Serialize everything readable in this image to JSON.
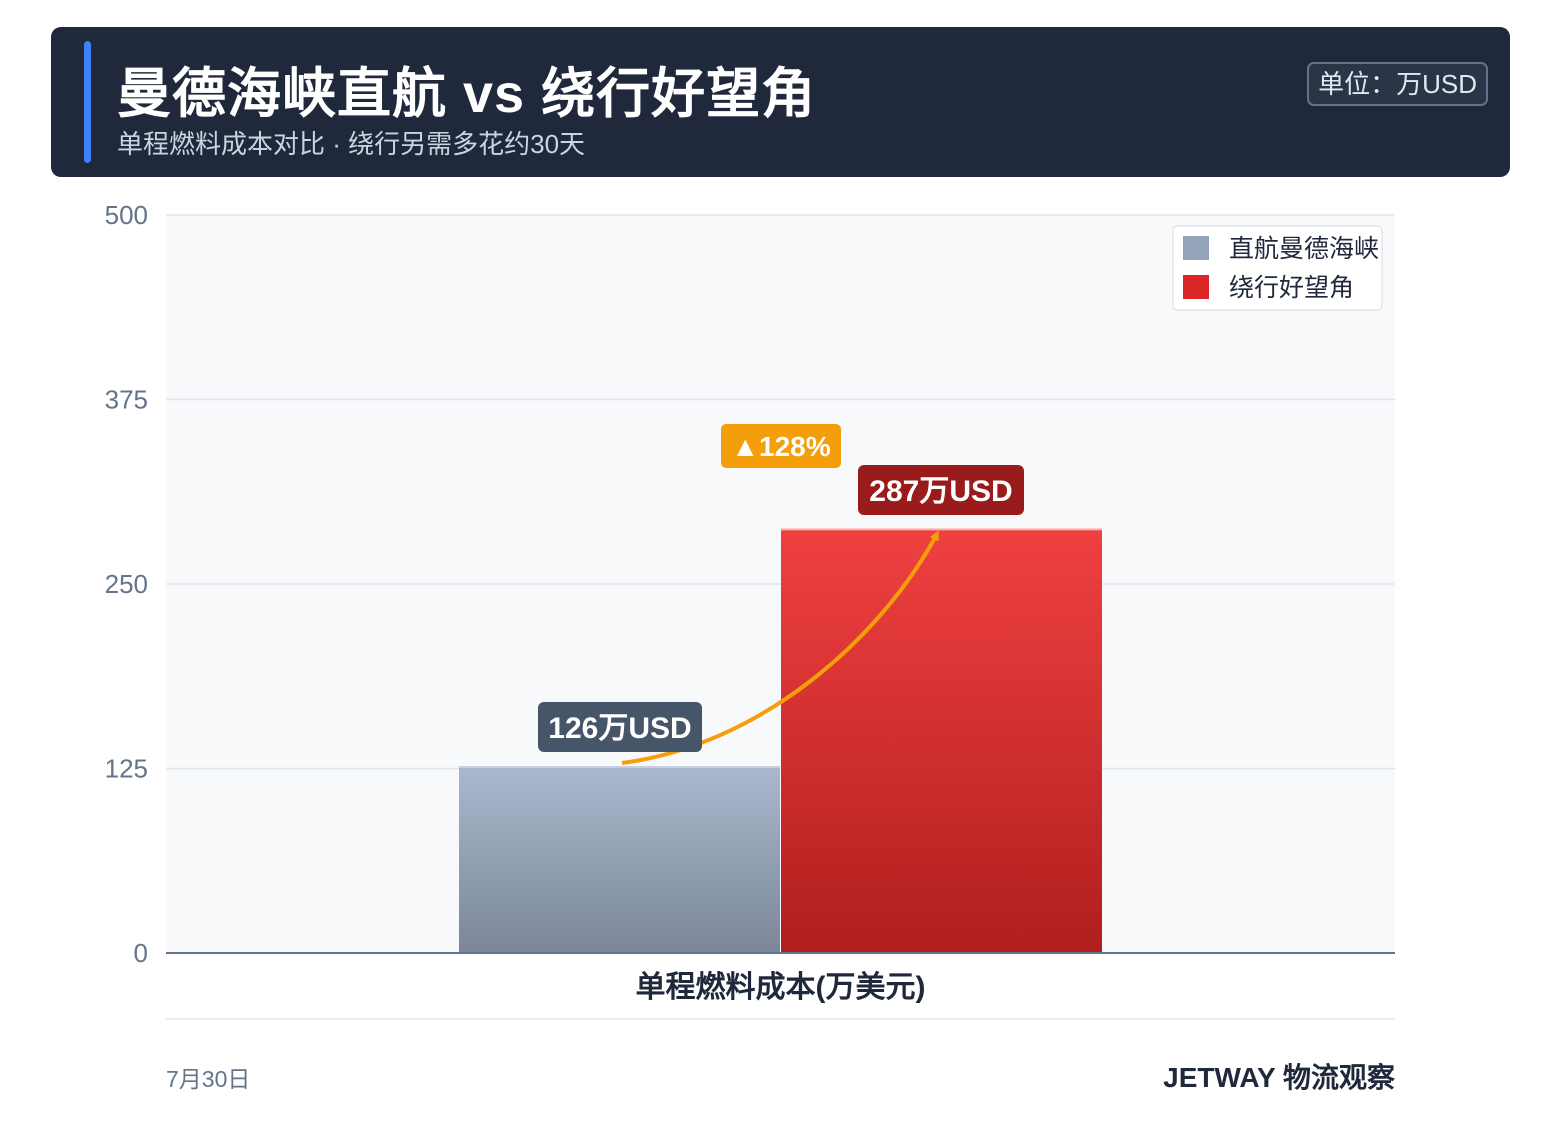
{
  "header": {
    "title": "曼德海峡直航 vs 绕行好望角",
    "subtitle": "单程燃料成本对比 · 绕行另需多花约30天",
    "unit_badge": "单位：万USD"
  },
  "footer": {
    "date": "7月30日",
    "brand": "JETWAY 物流观察"
  },
  "colors": {
    "header_bg": "#1f293b",
    "accent": "#3b82f6",
    "series_direct": "#94a3b8",
    "series_detour": "#dc2626",
    "change_badge": "#f59e0b",
    "label_direct": "#475569",
    "label_detour": "#991b1b"
  },
  "chart_data": {
    "type": "bar",
    "categories": [
      "单程燃料成本(万美元)"
    ],
    "series": [
      {
        "name": "直航曼德海峡",
        "values": [
          126
        ],
        "label": "126万USD"
      },
      {
        "name": "绕行好望角",
        "values": [
          287
        ],
        "label": "287万USD"
      }
    ],
    "xlabel": "单程燃料成本(万美元)",
    "ylabel": "",
    "ylim": [
      0,
      500
    ],
    "yticks": [
      0,
      125,
      250,
      375,
      500
    ],
    "grid": true,
    "legend_position": "top-right",
    "annotation": {
      "text": "▲128%"
    }
  }
}
